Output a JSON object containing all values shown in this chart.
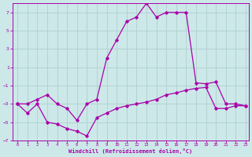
{
  "title": "",
  "xlabel": "Windchill (Refroidissement éolien,°C)",
  "ylabel": "",
  "background_color": "#cce8e8",
  "grid_color": "#b0d0d0",
  "line_color": "#aa00aa",
  "marker": "D",
  "markersize": 1.8,
  "linewidth": 0.9,
  "ylim": [
    -7,
    8
  ],
  "xlim": [
    -0.5,
    23.3
  ],
  "yticks": [
    -7,
    -5,
    -3,
    -1,
    1,
    3,
    5,
    7
  ],
  "xticks": [
    0,
    1,
    2,
    3,
    4,
    5,
    6,
    7,
    8,
    9,
    10,
    11,
    12,
    13,
    14,
    15,
    16,
    17,
    18,
    19,
    20,
    21,
    22,
    23
  ],
  "line1_x": [
    0,
    1,
    2,
    3,
    4,
    5,
    6,
    7,
    8,
    9,
    10,
    11,
    12,
    13,
    14,
    15,
    16,
    17,
    18,
    19,
    20,
    21,
    22,
    23
  ],
  "line1_y": [
    -3,
    -4,
    -3,
    -5,
    -5.2,
    -5.7,
    -6,
    -6.5,
    -4.5,
    -4,
    -3.5,
    -3.2,
    -3,
    -2.8,
    -2.5,
    -2,
    -1.8,
    -1.5,
    -1.3,
    -1.2,
    -3.5,
    -3.5,
    -3.2,
    -3.2
  ],
  "line2_x": [
    0,
    1,
    2,
    3,
    4,
    5,
    6,
    7,
    8,
    9,
    10,
    11,
    12,
    13,
    14,
    15,
    16,
    17,
    18,
    19,
    20,
    21,
    22,
    23
  ],
  "line2_y": [
    -3,
    -3,
    -2.5,
    -2,
    -3,
    -3.5,
    -4.8,
    -3,
    -2.5,
    2,
    4,
    6,
    6.5,
    8,
    6.5,
    7,
    7,
    7,
    -0.7,
    -0.8,
    -0.6,
    -3,
    -3,
    -3.2
  ]
}
